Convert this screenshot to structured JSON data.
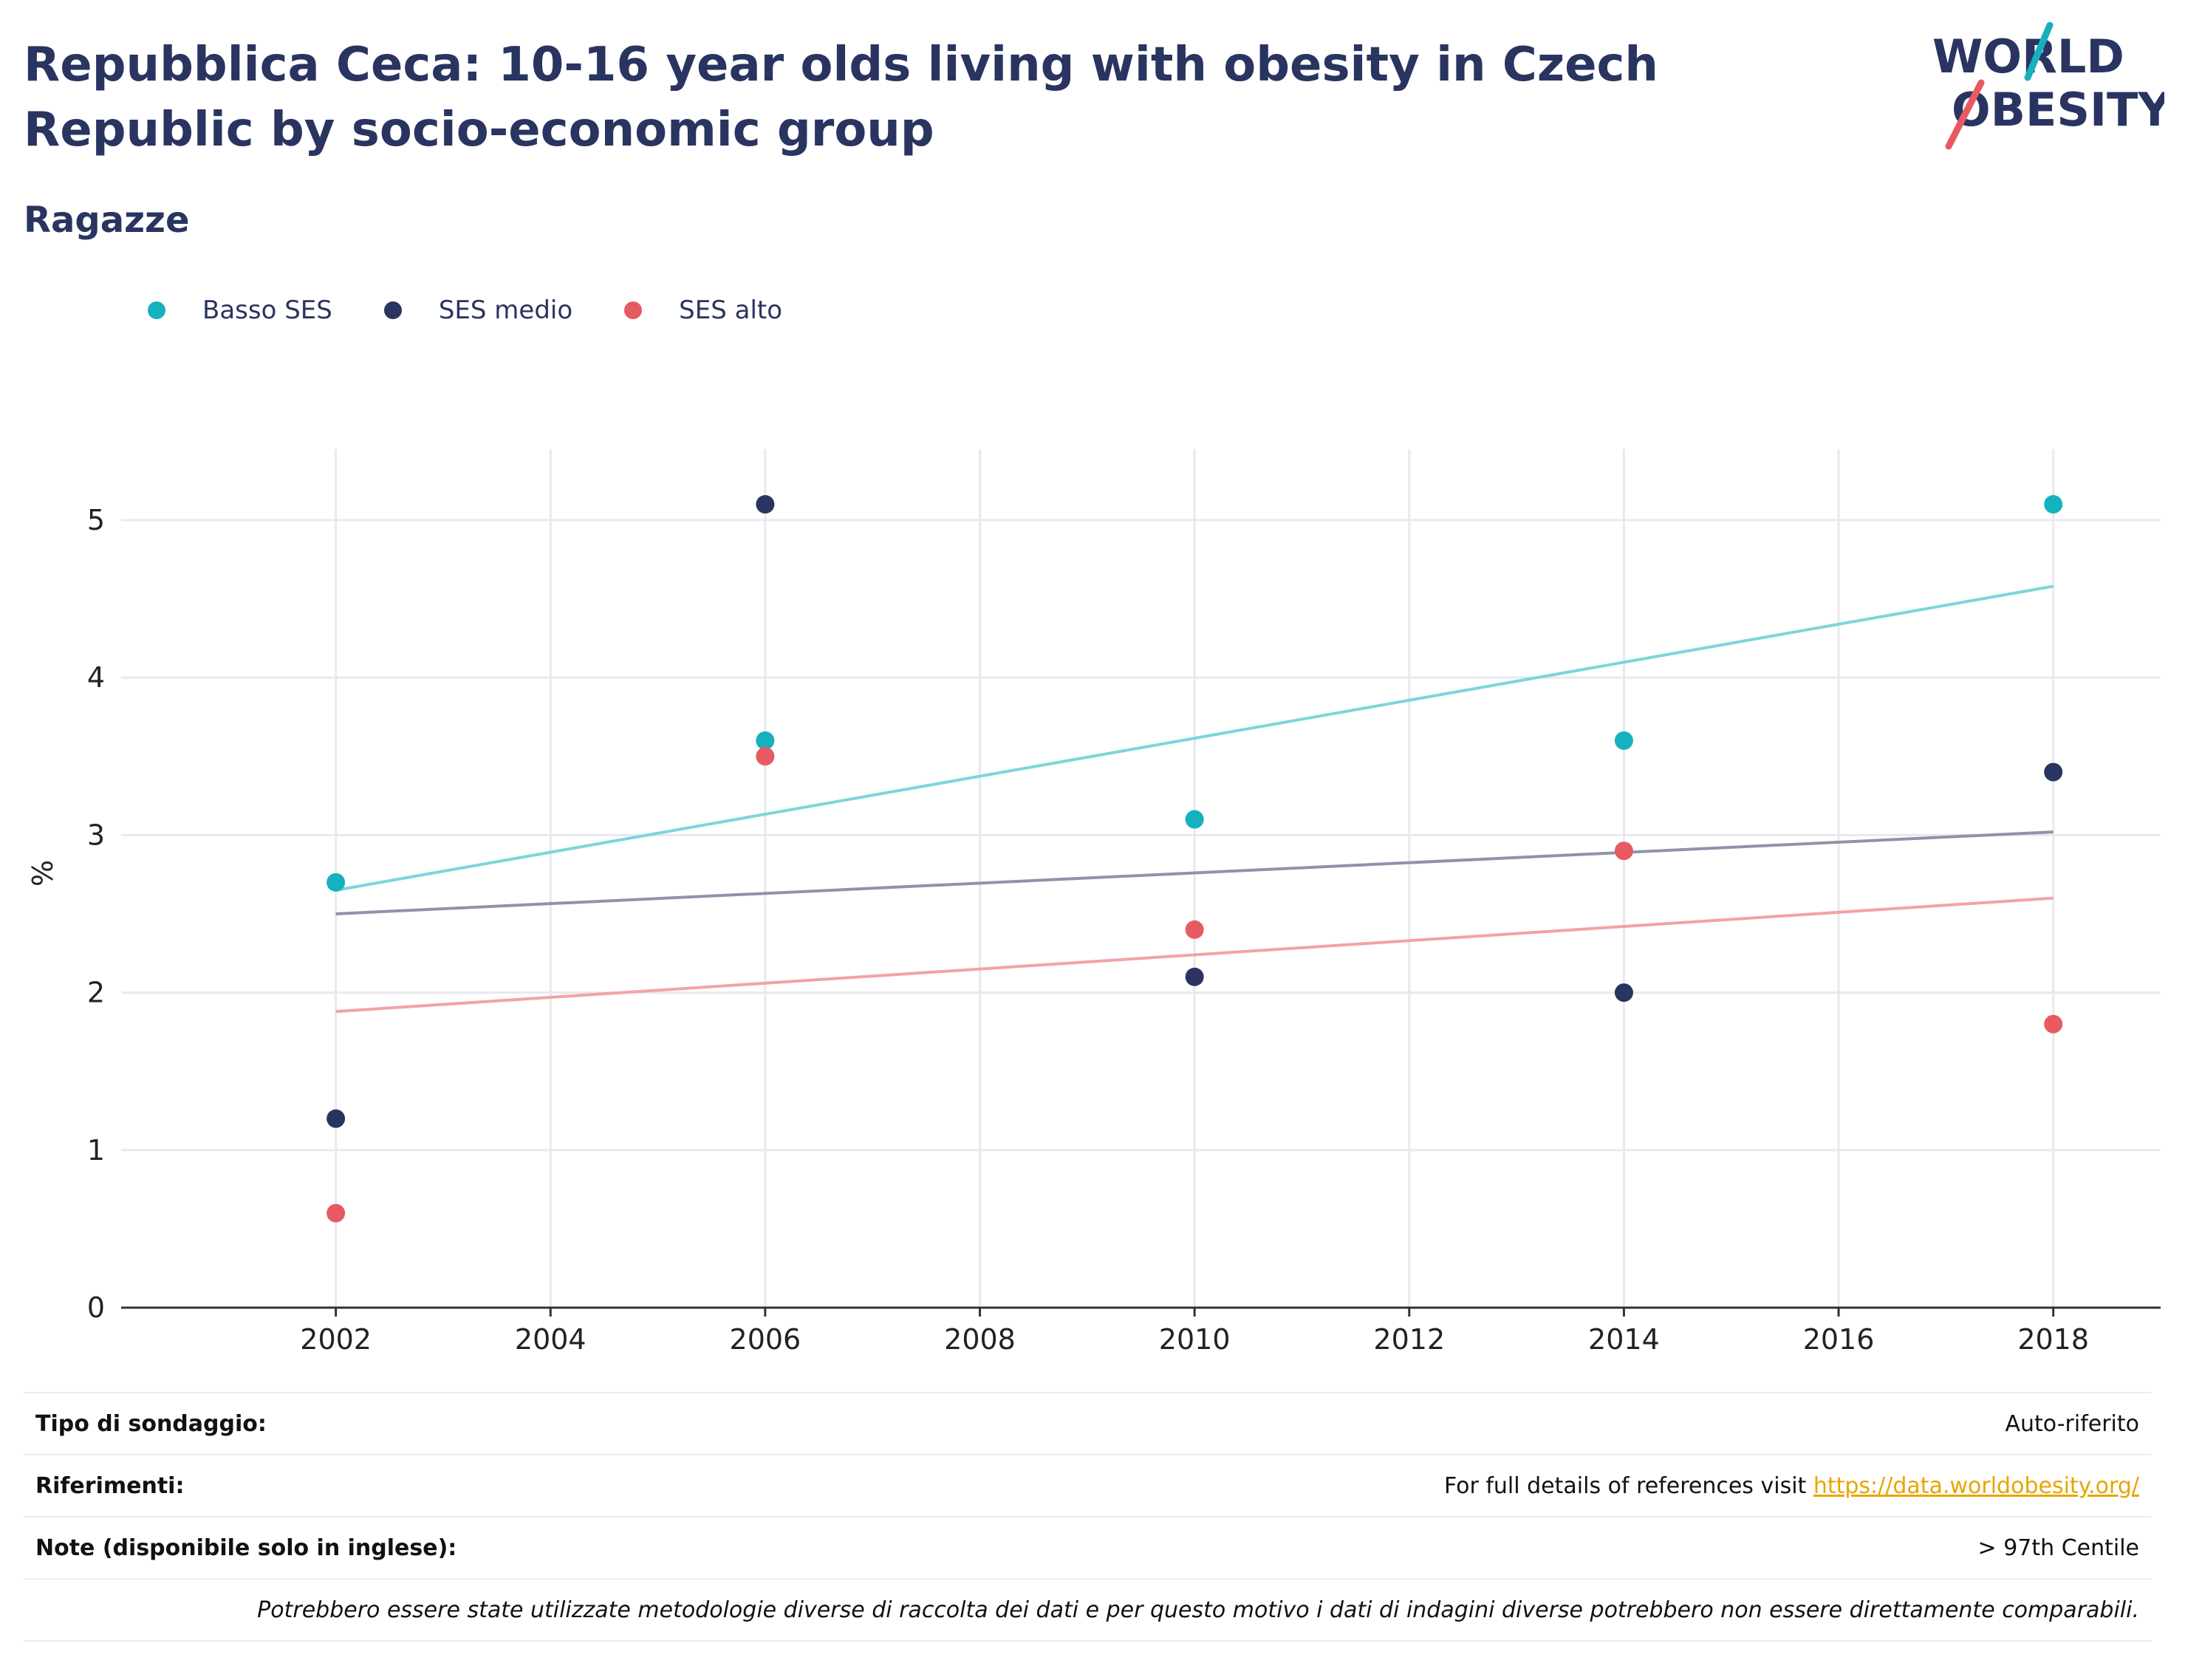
{
  "title": "Repubblica Ceca: 10-16 year olds living with obesity in Czech Republic by socio-economic group",
  "subtitle": "Ragazze",
  "logo": {
    "line1": "WORLD",
    "line2": "OBESITY"
  },
  "legend": [
    {
      "label": "Basso SES",
      "color": "#14b1be"
    },
    {
      "label": "SES medio",
      "color": "#2a3461"
    },
    {
      "label": "SES alto",
      "color": "#e85a61"
    }
  ],
  "chart_data": {
    "type": "scatter",
    "ylabel": "%",
    "xlabel": "",
    "xlim": [
      2000,
      2019
    ],
    "ylim": [
      0,
      5.45
    ],
    "x_ticks": [
      2002,
      2004,
      2006,
      2008,
      2010,
      2012,
      2014,
      2016,
      2018
    ],
    "y_ticks": [
      0,
      1,
      2,
      3,
      4,
      5
    ],
    "grid": true,
    "legend_position": "top-left",
    "series": [
      {
        "name": "Basso SES",
        "color": "#14b1be",
        "trend_color": "#7dd5db",
        "x": [
          2002,
          2006,
          2010,
          2014,
          2018
        ],
        "y": [
          2.7,
          3.6,
          3.1,
          3.6,
          5.1
        ],
        "trend": [
          2.65,
          4.58
        ]
      },
      {
        "name": "SES medio",
        "color": "#2a3461",
        "trend_color": "#8d93aa",
        "x": [
          2002,
          2006,
          2010,
          2014,
          2018
        ],
        "y": [
          1.2,
          5.1,
          2.1,
          2.0,
          3.4
        ],
        "trend": [
          2.5,
          3.02
        ]
      },
      {
        "name": "SES alto",
        "color": "#e85a61",
        "trend_color": "#f3a2a6",
        "x": [
          2002,
          2006,
          2010,
          2014,
          2018
        ],
        "y": [
          0.6,
          3.5,
          2.4,
          2.9,
          1.8
        ],
        "trend": [
          1.88,
          2.6
        ]
      }
    ]
  },
  "footer": {
    "survey_label": "Tipo di sondaggio:",
    "survey_value": "Auto-riferito",
    "refs_label": "Riferimenti:",
    "refs_text": "For full details of references visit ",
    "refs_link": "https://data.worldobesity.org/",
    "notes_label": "Note (disponibile solo in inglese):",
    "notes_value": "> 97th Centile",
    "disclaimer": "Potrebbero essere state utilizzate metodologie diverse di raccolta dei dati e per questo motivo i dati di indagini diverse potrebbero non essere direttamente comparabili."
  }
}
